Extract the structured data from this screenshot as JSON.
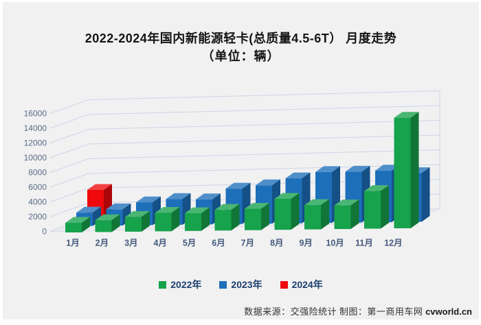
{
  "title": {
    "line1": "2022-2024年国内新能源轻卡(总质量4.5-6T） 月度走势",
    "line2": "（单位：辆）"
  },
  "chart_data": {
    "type": "bar",
    "style": "3d-column",
    "categories": [
      "1月",
      "2月",
      "3月",
      "4月",
      "5月",
      "6月",
      "7月",
      "8月",
      "9月",
      "10月",
      "11月",
      "12月"
    ],
    "series": [
      {
        "name": "2022年",
        "color": "#17a24c",
        "values": [
          1300,
          1600,
          2000,
          2500,
          2400,
          2800,
          2900,
          4200,
          3300,
          3200,
          5100,
          15000
        ]
      },
      {
        "name": "2023年",
        "color": "#1d6fba",
        "values": [
          1800,
          2200,
          3100,
          3500,
          3400,
          4800,
          5200,
          6100,
          6900,
          6900,
          7000,
          6600
        ]
      },
      {
        "name": "2024年",
        "color": "#ee0a0c",
        "values": [
          4000,
          null,
          null,
          null,
          null,
          null,
          null,
          null,
          null,
          null,
          null,
          null
        ]
      }
    ],
    "ylim": [
      0,
      16000
    ],
    "yticks": [
      0,
      2000,
      4000,
      6000,
      8000,
      10000,
      12000,
      14000,
      16000
    ],
    "xlabel": "",
    "ylabel": "",
    "grid": true,
    "legend_position": "bottom"
  },
  "footer": {
    "source_text": "数据来源：交强险统计 制图：第一商用车网 ",
    "site_text": "cvworld.cn"
  },
  "colors": {
    "panel_bg": "#f1f1f2",
    "grid": "#ccd4e6",
    "floor_fill": "#e9ebef",
    "floor_stroke": "#d8dce2",
    "axis_text": "#5a6b86",
    "month_text": "#44597c",
    "legend_text": "#1c3f6e"
  }
}
